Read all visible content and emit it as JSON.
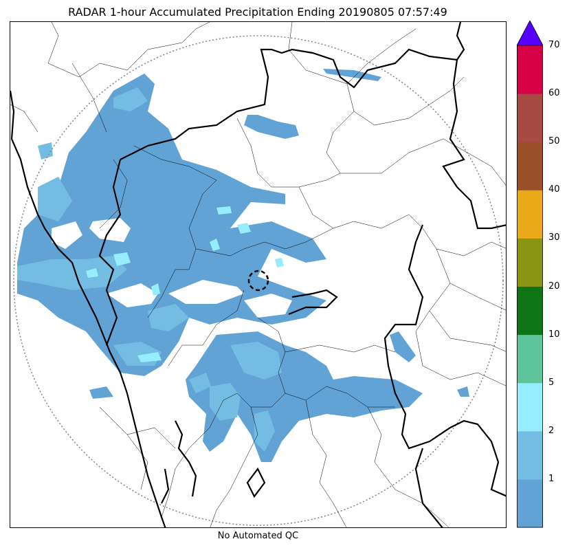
{
  "title": "RADAR 1-hour Accumulated Precipitation Ending 20190805 07:57:49",
  "footer_note": "No Automated QC",
  "colorbar": {
    "levels": [
      {
        "label": "",
        "color": "#62a3d6"
      },
      {
        "label": "1",
        "color": "#74bde2"
      },
      {
        "label": "2",
        "color": "#96edfd"
      },
      {
        "label": "5",
        "color": "#5ec49b"
      },
      {
        "label": "10",
        "color": "#0d7418"
      },
      {
        "label": "20",
        "color": "#8a9512"
      },
      {
        "label": "30",
        "color": "#e9a919"
      },
      {
        "label": "40",
        "color": "#9b4f28"
      },
      {
        "label": "50",
        "color": "#a84a44"
      },
      {
        "label": "60",
        "color": "#d60046"
      }
    ],
    "top_label": "70",
    "extend_color": "#5500ff"
  },
  "colors": {
    "light_rain": "#62a3d6",
    "moderate_rain": "#74bde2",
    "heavy_rain": "#96edfd",
    "range_ring": "#808080",
    "borders": "#000000"
  }
}
